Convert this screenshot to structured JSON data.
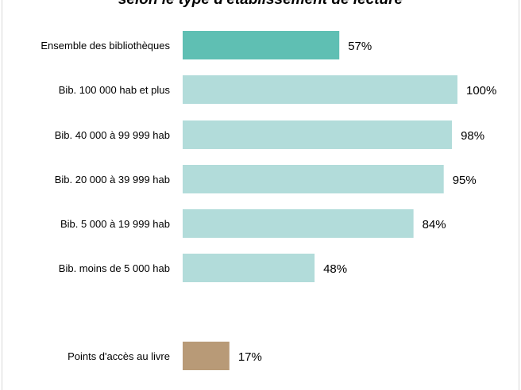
{
  "chart_data": {
    "type": "bar",
    "orientation": "horizontal",
    "title": "selon le type d'établissement de lecture",
    "categories": [
      "Ensemble des bibliothèques",
      "Bib. 100 000 hab et plus",
      "Bib. 40 000 à 99 999 hab",
      "Bib. 20 000 à 39 999 hab",
      "Bib. 5 000 à 19 999 hab",
      "Bib. moins de 5 000 hab",
      "Points d'accès au livre"
    ],
    "values": [
      57,
      100,
      98,
      95,
      84,
      48,
      17
    ],
    "value_labels": [
      "57%",
      "100%",
      "98%",
      "95%",
      "84%",
      "48%",
      "17%"
    ],
    "colors": [
      "#5fbfb3",
      "#b2dcda",
      "#b2dcda",
      "#b2dcda",
      "#b2dcda",
      "#b2dcda",
      "#b89a77"
    ],
    "xlim": [
      0,
      100
    ],
    "grid": false,
    "legend": "none"
  }
}
